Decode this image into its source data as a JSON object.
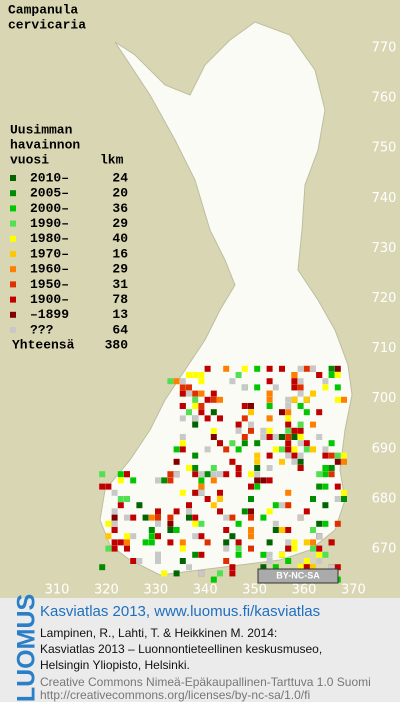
{
  "map": {
    "title_lines": [
      "Campanula",
      "cervicaria"
    ],
    "legend": {
      "header_lines": [
        "Uusimman",
        "havainnon",
        "vuosi"
      ],
      "count_header": "lkm",
      "items": [
        {
          "label": "2010–",
          "count": 24,
          "color": "#006400"
        },
        {
          "label": "2005–",
          "count": 20,
          "color": "#008c00"
        },
        {
          "label": "2000–",
          "count": 36,
          "color": "#00c800"
        },
        {
          "label": "1990–",
          "count": 29,
          "color": "#50e050"
        },
        {
          "label": "1980–",
          "count": 40,
          "color": "#ffff00"
        },
        {
          "label": "1970–",
          "count": 16,
          "color": "#ffc800"
        },
        {
          "label": "1960–",
          "count": 29,
          "color": "#ff8000"
        },
        {
          "label": "1950–",
          "count": 31,
          "color": "#e03000"
        },
        {
          "label": "1900–",
          "count": 78,
          "color": "#c00000"
        },
        {
          "label": "–1899",
          "count": 13,
          "color": "#800000"
        },
        {
          "label": "???",
          "count": 64,
          "color": "#c8c8c8"
        }
      ],
      "total_label": "Yhteensä",
      "total": 380
    },
    "grid_labels": {
      "north": [
        770,
        760,
        750,
        740,
        730,
        720,
        710,
        700,
        690,
        680,
        670
      ],
      "east": [
        310,
        320,
        330,
        340,
        350,
        360,
        370
      ]
    },
    "license_badge": "BY-NC-SA",
    "footer": {
      "logo": "LUOMUS",
      "atlas": "Kasviatlas 2013, www.luomus.fi/kasviatlas",
      "citation_lines": [
        "Lampinen, R., Lahti, T. & Heikkinen M. 2014:",
        "Kasviatlas 2013 – Luonnontieteellinen keskusmuseo,",
        "Helsingin Yliopisto, Helsinki."
      ],
      "license_lines": [
        "Creative Commons Nimeä-Epäkaupallinen-Tarttuva 1.0 Suomi",
        "http://creativecommons.org/licenses/by-nc-sa/1.0/fi"
      ]
    }
  }
}
